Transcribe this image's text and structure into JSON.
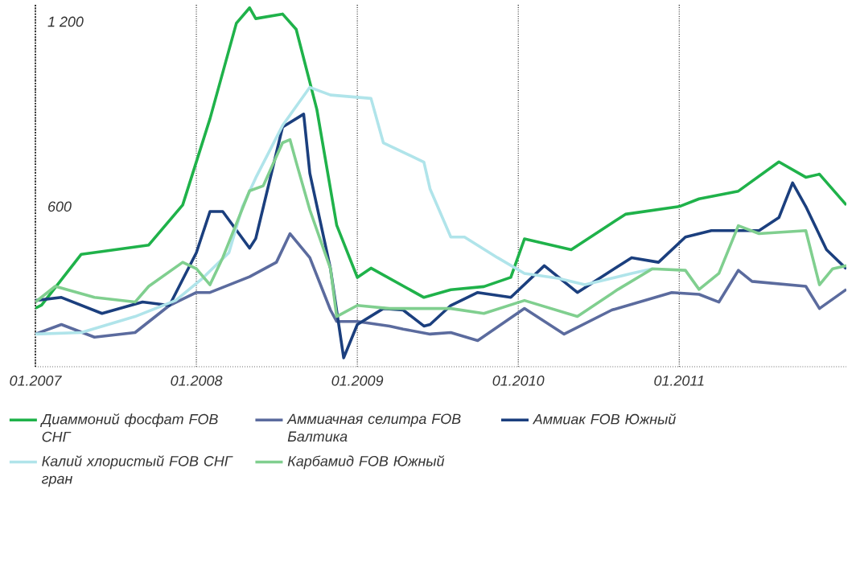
{
  "chart_data": {
    "type": "line",
    "xlim": [
      "2007-01-01",
      "2012-01-15"
    ],
    "ylim": [
      80,
      1260
    ],
    "xticks": [
      {
        "value": "2007-01",
        "label": "01.2007"
      },
      {
        "value": "2008-01",
        "label": "01.2008"
      },
      {
        "value": "2009-01",
        "label": "01.2009"
      },
      {
        "value": "2010-01",
        "label": "01.2010"
      },
      {
        "value": "2011-01",
        "label": "01.2011"
      }
    ],
    "yticks": [
      {
        "value": 600,
        "label": "600"
      },
      {
        "value": 1200,
        "label": "1 200"
      }
    ],
    "grid": "x",
    "legend": "bottom",
    "series": [
      {
        "name": "Диаммоний фосфат FOB СНГ",
        "color": "#1fb24a",
        "x": [
          "2007-01-01",
          "2007-01-15",
          "2007-04-15",
          "2007-09-15",
          "2007-12-01",
          "2008-02-01",
          "2008-04-01",
          "2008-05-01",
          "2008-05-15",
          "2008-07-15",
          "2008-08-15",
          "2008-10-01",
          "2008-11-15",
          "2009-01-01",
          "2009-02-01",
          "2009-06-01",
          "2009-08-01",
          "2009-10-15",
          "2009-12-15",
          "2010-01-15",
          "2010-05-01",
          "2010-09-01",
          "2011-01-01",
          "2011-02-15",
          "2011-05-15",
          "2011-08-15",
          "2011-10-15",
          "2011-11-15",
          "2012-01-15"
        ],
        "values": [
          270,
          280,
          445,
          475,
          605,
          885,
          1195,
          1245,
          1210,
          1225,
          1175,
          915,
          540,
          370,
          400,
          305,
          330,
          340,
          370,
          495,
          460,
          575,
          600,
          625,
          650,
          745,
          695,
          705,
          605
        ]
      },
      {
        "name": "Аммиачная селитра FOB Балтика",
        "color": "#5b6b9e",
        "x": [
          "2007-01-01",
          "2007-03-01",
          "2007-05-15",
          "2007-08-15",
          "2007-11-01",
          "2008-01-01",
          "2008-02-01",
          "2008-05-01",
          "2008-07-01",
          "2008-08-01",
          "2008-09-15",
          "2008-11-01",
          "2008-11-15",
          "2009-01-01",
          "2009-03-15",
          "2009-04-15",
          "2009-06-15",
          "2009-08-01",
          "2009-10-01",
          "2010-01-15",
          "2010-04-15",
          "2010-08-01",
          "2010-12-15",
          "2011-02-15",
          "2011-04-01",
          "2011-05-15",
          "2011-06-15",
          "2011-10-15",
          "2011-11-15",
          "2012-01-15"
        ],
        "values": [
          186,
          217,
          176,
          191,
          279,
          321,
          321,
          372,
          419,
          512,
          434,
          264,
          227,
          227,
          212,
          202,
          186,
          191,
          165,
          269,
          186,
          264,
          321,
          315,
          290,
          393,
          357,
          341,
          269,
          331
        ]
      },
      {
        "name": "Аммиак FOB Южный",
        "color": "#1b3f7e",
        "x": [
          "2007-01-01",
          "2007-03-01",
          "2007-06-01",
          "2007-09-01",
          "2007-11-01",
          "2008-01-01",
          "2008-02-01",
          "2008-03-01",
          "2008-05-01",
          "2008-05-15",
          "2008-07-15",
          "2008-09-01",
          "2008-09-15",
          "2008-11-01",
          "2008-12-01",
          "2009-01-01",
          "2009-03-01",
          "2009-04-15",
          "2009-06-01",
          "2009-06-15",
          "2009-08-01",
          "2009-10-01",
          "2009-12-15",
          "2010-03-01",
          "2010-05-15",
          "2010-09-15",
          "2010-11-15",
          "2011-01-15",
          "2011-03-15",
          "2011-07-01",
          "2011-08-15",
          "2011-09-15",
          "2011-10-15",
          "2011-12-01",
          "2012-01-15"
        ],
        "values": [
          295,
          305,
          253,
          290,
          279,
          450,
          584,
          584,
          465,
          496,
          858,
          900,
          708,
          398,
          109,
          217,
          269,
          264,
          212,
          217,
          279,
          321,
          305,
          408,
          321,
          434,
          419,
          501,
          522,
          522,
          564,
          677,
          600,
          460,
          398
        ]
      },
      {
        "name": "Калий хлористый FOB СНГ гран",
        "color": "#b0e4ea",
        "x": [
          "2007-01-01",
          "2007-04-15",
          "2007-08-15",
          "2007-11-15",
          "2008-01-15",
          "2008-03-15",
          "2008-04-15",
          "2008-05-15",
          "2008-07-15",
          "2008-09-15",
          "2008-11-01",
          "2009-02-01",
          "2009-03-01",
          "2009-06-01",
          "2009-06-15",
          "2009-08-01",
          "2009-09-01",
          "2009-11-15",
          "2010-01-15",
          "2010-04-01",
          "2010-06-01",
          "2010-09-15",
          "2010-11-01"
        ],
        "values": [
          186,
          191,
          243,
          295,
          367,
          450,
          600,
          693,
          863,
          987,
          962,
          951,
          807,
          744,
          657,
          501,
          501,
          434,
          383,
          367,
          346,
          383,
          398
        ]
      },
      {
        "name": "Карбамид FOB Южный",
        "color": "#80cf8f",
        "x": [
          "2007-01-01",
          "2007-02-15",
          "2007-05-15",
          "2007-08-15",
          "2007-09-15",
          "2007-12-01",
          "2008-01-01",
          "2008-02-01",
          "2008-03-01",
          "2008-05-01",
          "2008-06-01",
          "2008-07-15",
          "2008-08-01",
          "2008-08-15",
          "2008-09-15",
          "2008-11-01",
          "2008-11-15",
          "2009-01-01",
          "2009-03-15",
          "2009-08-01",
          "2009-10-15",
          "2010-01-15",
          "2010-05-15",
          "2010-08-15",
          "2010-11-01",
          "2011-01-15",
          "2011-02-15",
          "2011-04-01",
          "2011-05-15",
          "2011-07-01",
          "2011-10-15",
          "2011-11-15",
          "2011-12-15",
          "2012-01-15"
        ],
        "values": [
          290,
          341,
          305,
          290,
          341,
          419,
          398,
          346,
          434,
          651,
          667,
          807,
          817,
          744,
          589,
          398,
          243,
          279,
          269,
          269,
          253,
          295,
          243,
          331,
          398,
          393,
          331,
          383,
          538,
          512,
          522,
          346,
          398,
          408
        ]
      }
    ]
  }
}
